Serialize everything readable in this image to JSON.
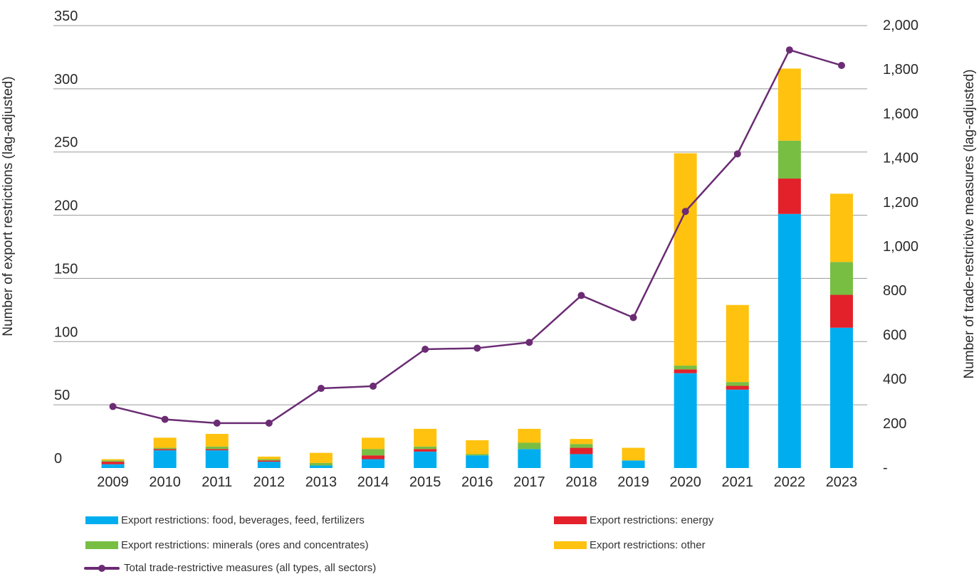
{
  "chart_data": {
    "type": "bar",
    "stacked": true,
    "categories": [
      "2009",
      "2010",
      "2011",
      "2012",
      "2013",
      "2014",
      "2015",
      "2016",
      "2017",
      "2018",
      "2019",
      "2020",
      "2021",
      "2022",
      "2023"
    ],
    "series": [
      {
        "name": "Export restrictions: food, beverages, feed, fertilizers",
        "color": "#00AEEF",
        "values": [
          3,
          14,
          14,
          5,
          2,
          7,
          13,
          10,
          15,
          11,
          6,
          75,
          62,
          201,
          111
        ]
      },
      {
        "name": "Export restrictions: energy",
        "color": "#E3212B",
        "values": [
          2,
          1,
          1,
          1,
          0,
          3,
          2,
          0,
          0,
          5,
          0,
          3,
          3,
          28,
          26
        ]
      },
      {
        "name": "Export restrictions: minerals (ores and concentrates)",
        "color": "#78BE43",
        "values": [
          1,
          1,
          2,
          1,
          2,
          5,
          2,
          1,
          5,
          3,
          0,
          3,
          3,
          30,
          26
        ]
      },
      {
        "name": "Export restrictions: other",
        "color": "#FFC20E",
        "values": [
          1,
          8,
          10,
          2,
          8,
          9,
          14,
          11,
          11,
          4,
          10,
          168,
          61,
          57,
          54
        ]
      }
    ],
    "line_series": {
      "name": "Total trade-restrictive measures (all types, all sectors)",
      "color": "#6B2C74",
      "values": [
        278,
        220,
        203,
        203,
        360,
        370,
        537,
        542,
        568,
        780,
        680,
        1160,
        1420,
        1890,
        1820
      ]
    },
    "ylim": [
      0,
      350
    ],
    "y_ticks": [
      0,
      50,
      100,
      150,
      200,
      250,
      300,
      350
    ],
    "y_tick_labels": [
      "0",
      "50",
      "100",
      "150",
      "200",
      "250",
      "300",
      "350"
    ],
    "y2lim": [
      0,
      2000
    ],
    "y2_ticks": [
      0,
      200,
      400,
      600,
      800,
      1000,
      1200,
      1400,
      1600,
      1800,
      2000
    ],
    "y2_tick_labels": [
      "-",
      "200",
      "400",
      "600",
      "800",
      "1,000",
      "1,200",
      "1,400",
      "1,600",
      "1,800",
      "2,000"
    ],
    "ylabel": "Number of export restrictions (lag-adjusted)",
    "y2label": "Number of trade-restrictive measures (lag-adjusted)",
    "grid": true,
    "legend_position": "bottom"
  }
}
